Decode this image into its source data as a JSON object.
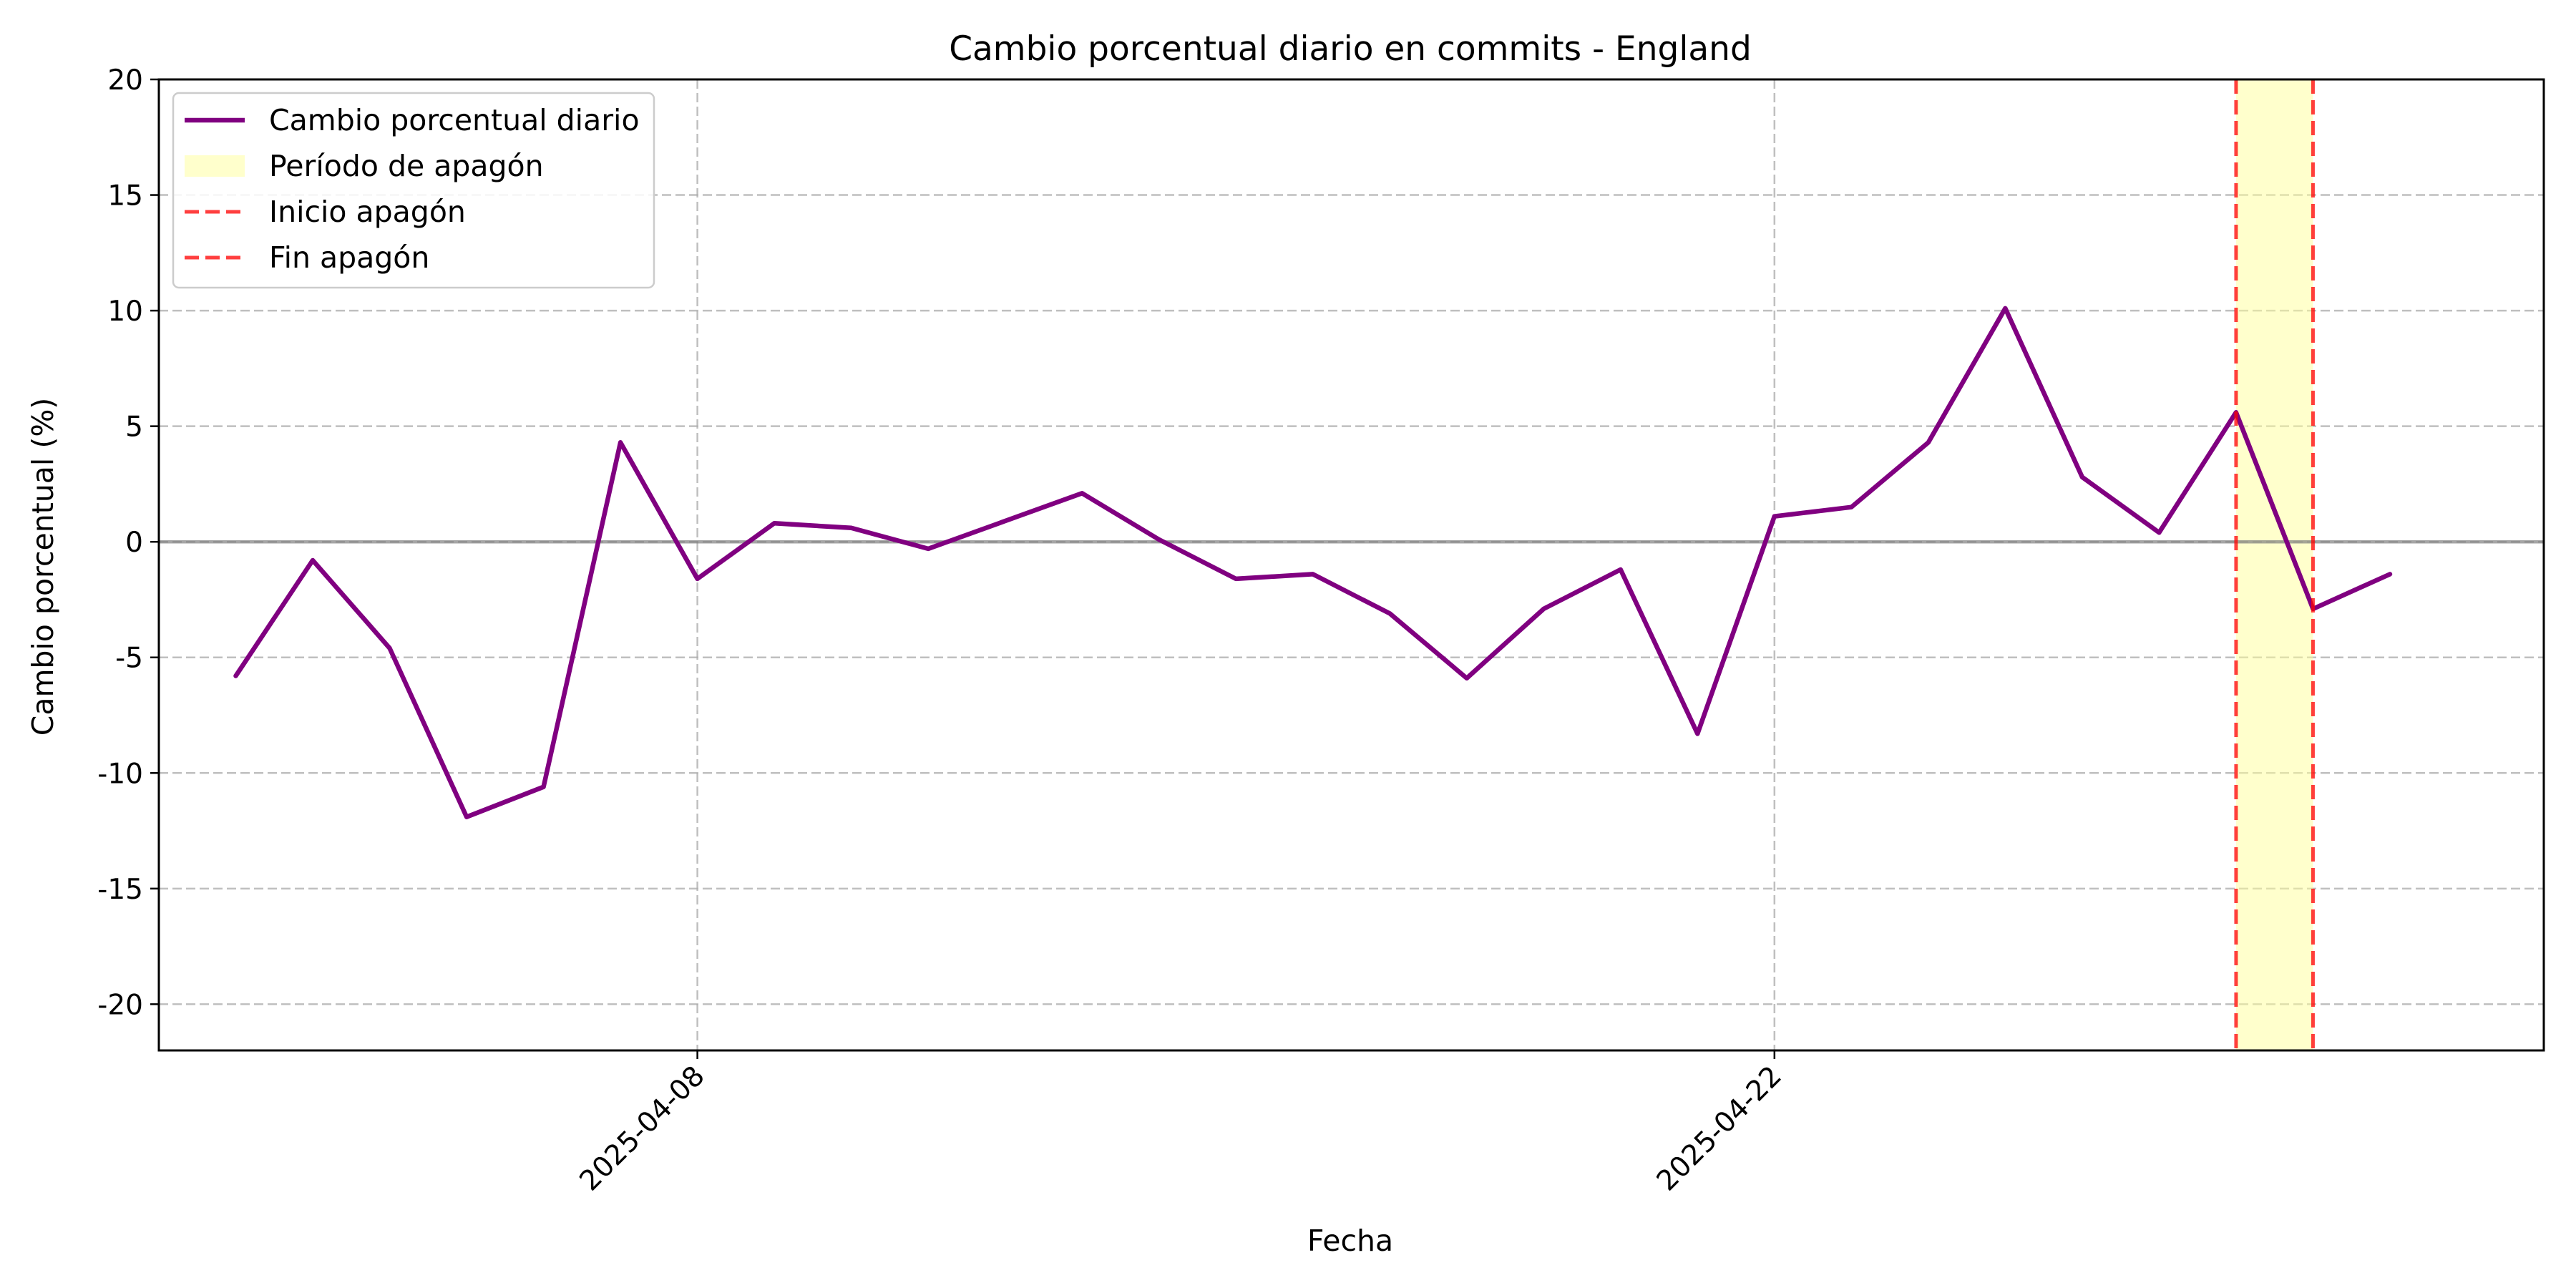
{
  "chart_data": {
    "type": "line",
    "title": "Cambio porcentual diario en commits - England",
    "xlabel": "Fecha",
    "ylabel": "Cambio porcentual (%)",
    "x": [
      "2025-04-02",
      "2025-04-03",
      "2025-04-04",
      "2025-04-05",
      "2025-04-06",
      "2025-04-07",
      "2025-04-08",
      "2025-04-09",
      "2025-04-10",
      "2025-04-11",
      "2025-04-12",
      "2025-04-13",
      "2025-04-14",
      "2025-04-15",
      "2025-04-16",
      "2025-04-17",
      "2025-04-18",
      "2025-04-19",
      "2025-04-20",
      "2025-04-21",
      "2025-04-22",
      "2025-04-23",
      "2025-04-24",
      "2025-04-25",
      "2025-04-26",
      "2025-04-27",
      "2025-04-28",
      "2025-04-29",
      "2025-04-30"
    ],
    "series": [
      {
        "name": "Cambio porcentual diario",
        "color": "#800080",
        "values": [
          -5.8,
          -0.8,
          -4.6,
          -11.9,
          -10.6,
          4.3,
          -1.6,
          0.8,
          0.6,
          -0.3,
          0.9,
          2.1,
          0.1,
          -1.6,
          -1.4,
          -3.1,
          -5.9,
          -2.9,
          -1.2,
          -8.3,
          1.1,
          1.5,
          4.3,
          10.1,
          2.8,
          0.4,
          5.6,
          -2.9,
          -1.4
        ]
      }
    ],
    "x_range": [
      "2025-04-01",
      "2025-05-02"
    ],
    "x_ticks": [
      "2025-04-08",
      "2025-04-22"
    ],
    "ylim": [
      -22,
      20
    ],
    "y_ticks": [
      -20,
      -15,
      -10,
      -5,
      0,
      5,
      10,
      15,
      20
    ],
    "blackout": {
      "start": "2025-04-28",
      "end": "2025-04-29",
      "fill_color": "#ffff99",
      "line_color": "#ff0000"
    },
    "legend": {
      "position": "upper left",
      "entries": [
        {
          "label": "Cambio porcentual diario",
          "kind": "line",
          "color": "#800080"
        },
        {
          "label": "Período de apagón",
          "kind": "patch",
          "color": "#ffff99"
        },
        {
          "label": "Inicio apagón",
          "kind": "dashed",
          "color": "#ff0000"
        },
        {
          "label": "Fin apagón",
          "kind": "dashed",
          "color": "#ff0000"
        }
      ]
    },
    "grid": true
  }
}
